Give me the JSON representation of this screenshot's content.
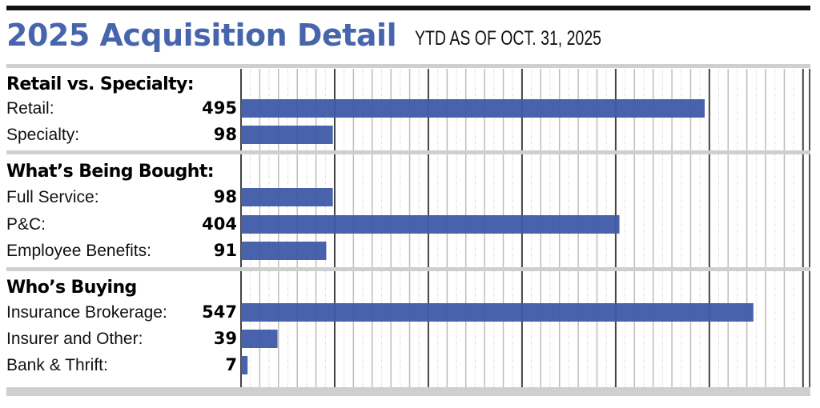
{
  "chart_data": {
    "type": "bar",
    "orientation": "horizontal",
    "title": "2025 Acquisition Detail",
    "subtitle": "YTD AS OF OCT. 31, 2025",
    "xlim": [
      0,
      607
    ],
    "grid": true,
    "bar_color": "#3f5aa8",
    "title_color": "#4765ad",
    "groups": [
      {
        "heading": "Retail vs. Specialty:",
        "items": [
          {
            "label": "Retail:",
            "value": 495
          },
          {
            "label": "Specialty:",
            "value": 98
          }
        ]
      },
      {
        "heading": "What’s Being Bought:",
        "items": [
          {
            "label": "Full Service:",
            "value": 98
          },
          {
            "label": "P&C:",
            "value": 404
          },
          {
            "label": "Employee Benefits:",
            "value": 91
          }
        ]
      },
      {
        "heading": "Who’s Buying",
        "items": [
          {
            "label": "Insurance Brokerage:",
            "value": 547
          },
          {
            "label": "Insurer and Other:",
            "value": 39
          },
          {
            "label": "Bank & Thrift:",
            "value": 7
          }
        ]
      }
    ]
  }
}
